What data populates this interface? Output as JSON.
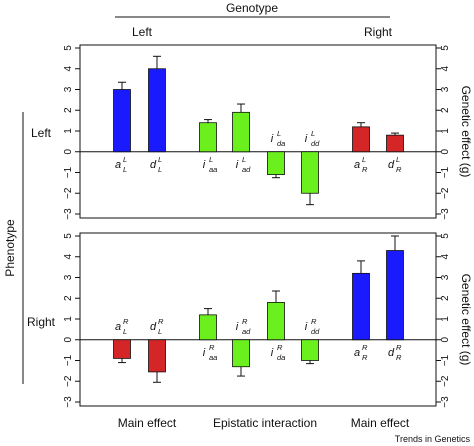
{
  "header": {
    "group_title": "Genotype",
    "left_label": "Left",
    "right_label": "Right"
  },
  "side": {
    "group_title": "Phenotype",
    "row_labels": [
      "Left",
      "Right"
    ]
  },
  "bottom": {
    "labels": [
      "Main effect",
      "Epistatic interaction",
      "Main effect"
    ]
  },
  "credit": "Trends in Genetics",
  "colors": {
    "blue": "#1a1aff",
    "green": "#6bf01e",
    "red": "#d42626"
  },
  "chart_data": [
    {
      "type": "bar",
      "title": "",
      "row": "Left",
      "ylabel_right": "Genetic effect (g)",
      "ylim": [
        -3,
        5
      ],
      "yticks": [
        "5",
        "4",
        "3",
        "2",
        "1",
        "0",
        "−1",
        "−2",
        "−3"
      ],
      "categories": [
        {
          "base": "a",
          "sup": "L",
          "sub": "L"
        },
        {
          "base": "d",
          "sup": "L",
          "sub": "L"
        },
        {
          "base": "i",
          "sup": "L",
          "sub": "aa"
        },
        {
          "base": "i",
          "sup": "L",
          "sub": "ad"
        },
        {
          "base": "i",
          "sup": "L",
          "sub": "da"
        },
        {
          "base": "i",
          "sup": "L",
          "sub": "dd"
        },
        {
          "base": "a",
          "sup": "L",
          "sub": "R"
        },
        {
          "base": "d",
          "sup": "L",
          "sub": "R"
        }
      ],
      "values": [
        3.0,
        4.0,
        1.4,
        1.9,
        -1.1,
        -2.0,
        1.2,
        0.8
      ],
      "errors": [
        0.35,
        0.6,
        0.15,
        0.4,
        0.15,
        0.55,
        0.2,
        0.1
      ],
      "colors": [
        "blue",
        "blue",
        "green",
        "green",
        "green",
        "green",
        "red",
        "red"
      ]
    },
    {
      "type": "bar",
      "title": "",
      "row": "Right",
      "ylabel_right": "Genetic effect (g)",
      "ylim": [
        -3,
        5
      ],
      "yticks": [
        "5",
        "4",
        "3",
        "2",
        "1",
        "0",
        "−1",
        "−2",
        "−3"
      ],
      "categories": [
        {
          "base": "a",
          "sup": "R",
          "sub": "L"
        },
        {
          "base": "d",
          "sup": "R",
          "sub": "L"
        },
        {
          "base": "i",
          "sup": "R",
          "sub": "aa"
        },
        {
          "base": "i",
          "sup": "R",
          "sub": "ad"
        },
        {
          "base": "i",
          "sup": "R",
          "sub": "da"
        },
        {
          "base": "i",
          "sup": "R",
          "sub": "dd"
        },
        {
          "base": "a",
          "sup": "R",
          "sub": "R"
        },
        {
          "base": "d",
          "sup": "R",
          "sub": "R"
        }
      ],
      "values": [
        -0.9,
        -1.55,
        1.2,
        -1.3,
        1.8,
        -1.0,
        3.2,
        4.3
      ],
      "errors": [
        0.2,
        0.5,
        0.3,
        0.45,
        0.55,
        0.15,
        0.6,
        0.7
      ],
      "colors": [
        "red",
        "red",
        "green",
        "green",
        "green",
        "green",
        "blue",
        "blue"
      ]
    }
  ]
}
